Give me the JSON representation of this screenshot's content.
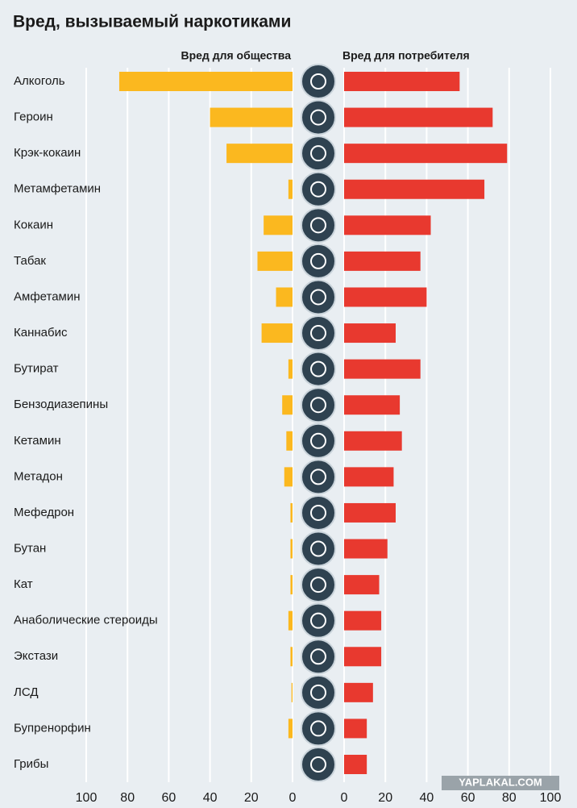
{
  "chart_data": {
    "type": "butterfly",
    "title": "Вред, вызываемый наркотиками",
    "categories": [
      "Алкоголь",
      "Героин",
      "Крэк-кокаин",
      "Метамфетамин",
      "Кокаин",
      "Табак",
      "Амфетамин",
      "Каннабис",
      "Бутират",
      "Бензодиазепины",
      "Кетамин",
      "Метадон",
      "Мефедрон",
      "Бутан",
      "Кат",
      "Анаболические стероиды",
      "Экстази",
      "ЛСД",
      "Бупренорфин",
      "Грибы"
    ],
    "series": [
      {
        "name": "Вред для общества",
        "color": "#fbb81f",
        "side": "left",
        "values": [
          84,
          40,
          32,
          2,
          14,
          17,
          8,
          15,
          2,
          5,
          3,
          4,
          1,
          1,
          1,
          2,
          1,
          0.5,
          2,
          0
        ]
      },
      {
        "name": "Вред для потребителя",
        "color": "#e8392f",
        "side": "right",
        "values": [
          56,
          72,
          79,
          68,
          42,
          37,
          40,
          25,
          37,
          27,
          28,
          24,
          25,
          21,
          17,
          18,
          18,
          14,
          11,
          11
        ]
      }
    ],
    "xlim": [
      0,
      100
    ],
    "xticks": [
      0,
      20,
      40,
      60,
      80,
      100
    ],
    "grid": true,
    "watermark": "YAPLAKAL.COM"
  }
}
